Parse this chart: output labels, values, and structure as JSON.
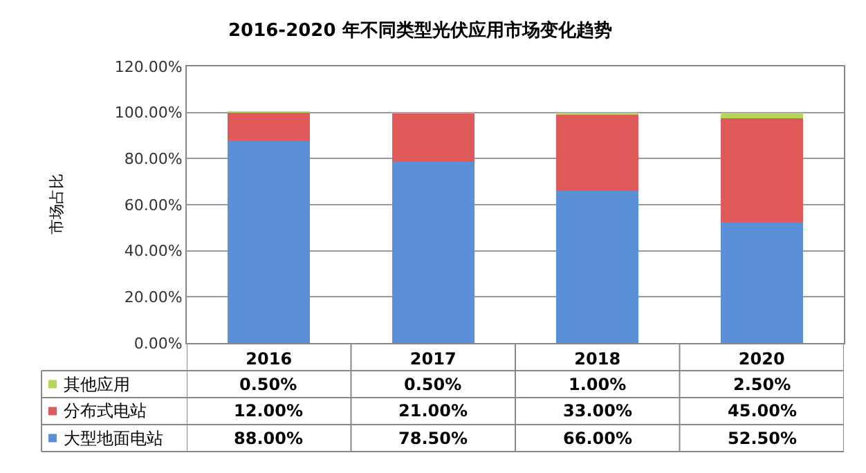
{
  "chart_data": {
    "type": "bar",
    "title": "2016-2020 年不同类型光伏应用市场变化趋势",
    "ylabel": "市场占比",
    "categories": [
      "2016",
      "2017",
      "2018",
      "2020"
    ],
    "stacked": true,
    "series": [
      {
        "name": "大型地面电站",
        "color": "#5b8fd8",
        "values": [
          88,
          78.5,
          66,
          52.5
        ],
        "value_labels": [
          "88.00%",
          "78.50%",
          "66.00%",
          "52.50%"
        ]
      },
      {
        "name": "分布式电站",
        "color": "#e05a5a",
        "values": [
          12,
          21,
          33,
          45
        ],
        "value_labels": [
          "12.00%",
          "21.00%",
          "33.00%",
          "45.00%"
        ]
      },
      {
        "name": "其他应用",
        "color": "#b5d65a",
        "values": [
          0.5,
          0.5,
          1,
          2.5
        ],
        "value_labels": [
          "0.50%",
          "0.50%",
          "1.00%",
          "2.50%"
        ]
      }
    ],
    "ylim": [
      0,
      120
    ],
    "yticks": [
      {
        "value": 0,
        "label": "0.00%"
      },
      {
        "value": 20,
        "label": "20.00%"
      },
      {
        "value": 40,
        "label": "40.00%"
      },
      {
        "value": 60,
        "label": "60.00%"
      },
      {
        "value": 80,
        "label": "80.00%"
      },
      {
        "value": 100,
        "label": "100.00%"
      },
      {
        "value": 120,
        "label": "120.00%"
      }
    ],
    "grid": "y",
    "legend": "bottom"
  }
}
